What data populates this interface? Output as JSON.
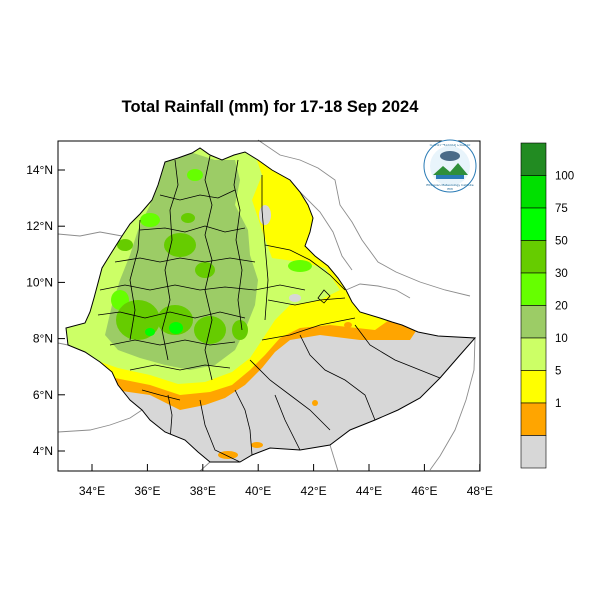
{
  "title": "Total Rainfall (mm) for 17-18 Sep 2024",
  "logo": {
    "name": "Ethiopian Meteorology Institute logo",
    "text_top": "የኢትዮጵያ ሚቲዎሮሎጂ ኢንስቲትዩት",
    "text_bottom": "Ethiopian Meteorology Institute",
    "text_abbr": "EMI"
  },
  "x_ticks": [
    "34°E",
    "36°E",
    "38°E",
    "40°E",
    "42°E",
    "44°E",
    "46°E",
    "48°E"
  ],
  "y_ticks": [
    "14°N",
    "12°N",
    "10°N",
    "8°N",
    "6°N",
    "4°N"
  ],
  "legend": {
    "colors": [
      "#d7d7d7",
      "#ffa500",
      "#ffff00",
      "#ccff66",
      "#9ccc66",
      "#66ff00",
      "#66cc00",
      "#00ff00",
      "#00e000",
      "#228b22"
    ],
    "labels": [
      "1",
      "5",
      "10",
      "20",
      "30",
      "50",
      "75",
      "100"
    ]
  },
  "colors": {
    "dry": "#d7d7d7",
    "class_1_5": "#ffa500",
    "class_5_10": "#ffff00",
    "class_10_20": "#ccff66",
    "class_20_30": "#9ccc66",
    "class_30_50": "#66ff00",
    "class_50_75": "#66cc00",
    "class_75_100": "#00ff00",
    "class_100_plus": "#228b22"
  }
}
